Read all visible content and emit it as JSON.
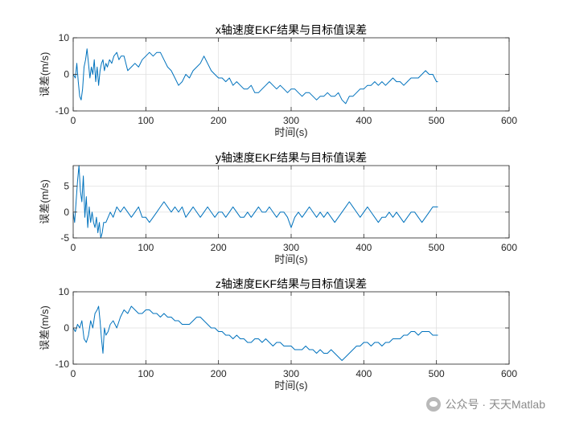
{
  "chart_data": [
    {
      "type": "line",
      "title": "x轴速度EKF结果与目标值误差",
      "xlabel": "时间(s)",
      "ylabel": "误差(m/s)",
      "xlim": [
        0,
        600
      ],
      "ylim": [
        -10,
        10
      ],
      "xticks": [
        "0",
        "100",
        "200",
        "300",
        "400",
        "500",
        "600"
      ],
      "yticks": [
        "10",
        "0",
        "-10"
      ],
      "grid": true,
      "series": [
        {
          "color": "#0072BD",
          "x": [
            0,
            3,
            5,
            7,
            9,
            11,
            13,
            15,
            17,
            19,
            21,
            23,
            25,
            27,
            29,
            31,
            33,
            35,
            37,
            39,
            41,
            43,
            45,
            47,
            50,
            53,
            56,
            60,
            63,
            66,
            70,
            75,
            80,
            85,
            90,
            95,
            100,
            105,
            110,
            115,
            120,
            125,
            130,
            135,
            140,
            145,
            150,
            155,
            160,
            165,
            170,
            175,
            180,
            185,
            190,
            195,
            200,
            205,
            210,
            215,
            220,
            225,
            230,
            235,
            240,
            245,
            250,
            255,
            260,
            265,
            270,
            275,
            280,
            285,
            290,
            295,
            300,
            305,
            310,
            315,
            320,
            325,
            330,
            335,
            340,
            345,
            350,
            355,
            360,
            365,
            370,
            375,
            380,
            385,
            390,
            395,
            400,
            405,
            410,
            415,
            420,
            425,
            430,
            435,
            440,
            445,
            450,
            455,
            460,
            465,
            470,
            475,
            480,
            485,
            490,
            495,
            500,
            502
          ],
          "y": [
            0,
            -1,
            3,
            -2,
            -6,
            -7,
            -4,
            2,
            4,
            7,
            3,
            -1,
            2,
            0,
            4,
            -2,
            2,
            -3,
            1,
            3,
            4,
            1,
            3,
            2,
            4,
            3,
            5,
            6,
            4,
            5,
            5,
            1,
            2,
            3,
            2,
            4,
            5,
            6,
            5,
            6,
            6,
            4,
            2,
            1,
            -1,
            -3,
            -2,
            0,
            -1,
            1,
            2,
            3,
            5,
            3,
            1,
            0,
            -1,
            -1,
            -2,
            -1,
            -3,
            -2,
            -3,
            -4,
            -4,
            -3,
            -5,
            -5,
            -4,
            -3,
            -2,
            -3,
            -4,
            -3,
            -4,
            -5,
            -4,
            -4,
            -5,
            -6,
            -5,
            -5,
            -6,
            -7,
            -6,
            -6,
            -5,
            -6,
            -6,
            -5,
            -7,
            -8,
            -6,
            -6,
            -5,
            -4,
            -4,
            -3,
            -3,
            -2,
            -3,
            -2,
            -3,
            -2,
            -1,
            -2,
            -2,
            -3,
            -2,
            -1,
            -1,
            -1,
            0,
            1,
            0,
            0,
            -2,
            -2
          ]
        }
      ]
    },
    {
      "type": "line",
      "title": "y轴速度EKF结果与目标值误差",
      "xlabel": "时间(s)",
      "ylabel": "误差(m/s)",
      "xlim": [
        0,
        600
      ],
      "ylim": [
        -5,
        9
      ],
      "xticks": [
        "0",
        "100",
        "200",
        "300",
        "400",
        "500",
        "600"
      ],
      "yticks": [
        "5",
        "0",
        "-5"
      ],
      "grid": true,
      "series": [
        {
          "color": "#0072BD",
          "x": [
            0,
            2,
            4,
            6,
            8,
            10,
            12,
            14,
            16,
            18,
            20,
            22,
            24,
            26,
            28,
            30,
            32,
            34,
            36,
            38,
            40,
            42,
            45,
            48,
            51,
            55,
            60,
            65,
            70,
            75,
            80,
            85,
            90,
            95,
            100,
            105,
            110,
            115,
            120,
            125,
            130,
            135,
            140,
            145,
            150,
            155,
            160,
            165,
            170,
            175,
            180,
            185,
            190,
            195,
            200,
            205,
            210,
            215,
            220,
            225,
            230,
            235,
            240,
            245,
            250,
            255,
            260,
            265,
            270,
            275,
            280,
            285,
            290,
            295,
            300,
            305,
            310,
            315,
            320,
            325,
            330,
            335,
            340,
            345,
            350,
            355,
            360,
            365,
            370,
            375,
            380,
            385,
            390,
            395,
            400,
            405,
            410,
            415,
            420,
            425,
            430,
            435,
            440,
            445,
            450,
            455,
            460,
            465,
            470,
            475,
            480,
            485,
            490,
            495,
            500,
            502
          ],
          "y": [
            0,
            -2,
            2,
            6,
            9,
            4,
            2,
            7,
            -1,
            3,
            -3,
            1,
            -2,
            0,
            -2,
            -3,
            -1,
            -4,
            -2,
            -5,
            -4,
            -2,
            -2,
            -1,
            0,
            -1,
            1,
            0,
            1,
            0,
            -1,
            0,
            1,
            -1,
            -1,
            -2,
            -1,
            0,
            1,
            2,
            1,
            0,
            1,
            0,
            1,
            -1,
            0,
            1,
            0,
            -1,
            0,
            1,
            0,
            -1,
            0,
            0,
            -1,
            0,
            1,
            0,
            -1,
            -1,
            0,
            -1,
            0,
            1,
            0,
            0,
            1,
            0,
            -1,
            0,
            0,
            -1,
            -3,
            -1,
            0,
            -1,
            0,
            1,
            0,
            -1,
            0,
            -1,
            0,
            -1,
            -2,
            -1,
            0,
            1,
            2,
            1,
            0,
            -1,
            0,
            1,
            0,
            -1,
            -2,
            -1,
            -1,
            0,
            -1,
            0,
            -1,
            -2,
            -1,
            0,
            0,
            -1,
            -2,
            -1,
            0,
            1,
            1,
            1
          ]
        }
      ]
    },
    {
      "type": "line",
      "title": "z轴速度EKF结果与目标值误差",
      "xlabel": "时间(s)",
      "ylabel": "误差(m/s)",
      "xlim": [
        0,
        600
      ],
      "ylim": [
        -10,
        10
      ],
      "xticks": [
        "0",
        "100",
        "200",
        "300",
        "400",
        "500",
        "600"
      ],
      "yticks": [
        "10",
        "0",
        "-10"
      ],
      "grid": true,
      "series": [
        {
          "color": "#0072BD",
          "x": [
            0,
            3,
            6,
            9,
            12,
            15,
            18,
            21,
            24,
            27,
            30,
            33,
            35,
            37,
            39,
            41,
            43,
            45,
            48,
            51,
            55,
            60,
            65,
            70,
            75,
            80,
            85,
            90,
            95,
            100,
            105,
            110,
            115,
            120,
            125,
            130,
            135,
            140,
            145,
            150,
            155,
            160,
            165,
            170,
            175,
            180,
            185,
            190,
            195,
            200,
            205,
            210,
            215,
            220,
            225,
            230,
            235,
            240,
            245,
            250,
            255,
            260,
            265,
            270,
            275,
            280,
            285,
            290,
            295,
            300,
            305,
            310,
            315,
            320,
            325,
            330,
            335,
            340,
            345,
            350,
            355,
            360,
            365,
            370,
            375,
            380,
            385,
            390,
            395,
            400,
            405,
            410,
            415,
            420,
            425,
            430,
            435,
            440,
            445,
            450,
            455,
            460,
            465,
            470,
            475,
            480,
            485,
            490,
            495,
            500,
            502
          ],
          "y": [
            0,
            -1,
            1,
            0,
            2,
            -3,
            -4,
            -2,
            2,
            0,
            4,
            5,
            6,
            2,
            -3,
            -7,
            0,
            -2,
            -1,
            1,
            2,
            0,
            3,
            5,
            4,
            6,
            5,
            4,
            4,
            5,
            5,
            4,
            4,
            3,
            4,
            3,
            3,
            2,
            2,
            1,
            1,
            1,
            2,
            3,
            3,
            2,
            1,
            0,
            0,
            -1,
            -1,
            -2,
            -2,
            -3,
            -2,
            -3,
            -3,
            -4,
            -4,
            -3,
            -3,
            -4,
            -3,
            -4,
            -5,
            -4,
            -4,
            -5,
            -5,
            -5,
            -6,
            -6,
            -6,
            -5,
            -6,
            -6,
            -7,
            -6,
            -7,
            -7,
            -6,
            -7,
            -8,
            -9,
            -8,
            -7,
            -6,
            -5,
            -5,
            -4,
            -4,
            -5,
            -4,
            -4,
            -5,
            -4,
            -4,
            -3,
            -3,
            -3,
            -2,
            -2,
            -1,
            -1,
            -2,
            -1,
            -1,
            -1,
            -2,
            -2,
            -2
          ]
        }
      ]
    }
  ],
  "watermark": {
    "text": "公众号 · 天天Matlab",
    "icon": "wechat-icon"
  }
}
